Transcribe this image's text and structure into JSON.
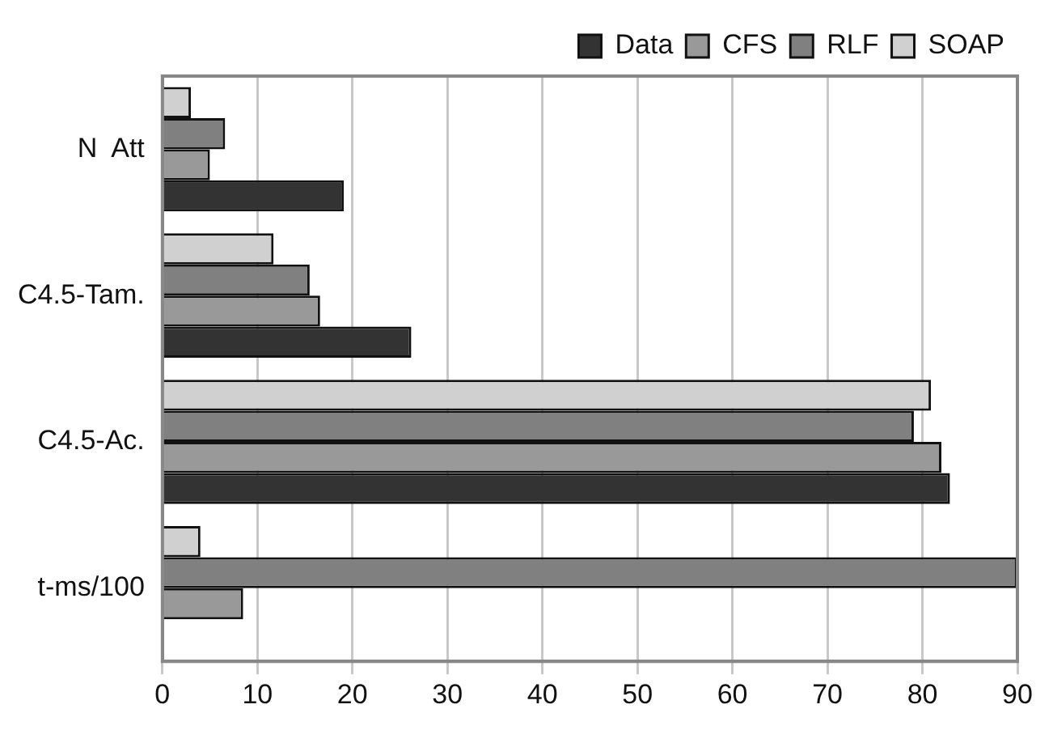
{
  "chart_data": {
    "type": "bar",
    "orientation": "horizontal",
    "categories": [
      "N  Att",
      "C4.5-Tam.",
      "C4.5-Ac.",
      "t-ms/100"
    ],
    "series": [
      {
        "name": "Data",
        "color": "#333333",
        "values": [
          19.1,
          26.2,
          82.9,
          null
        ]
      },
      {
        "name": "CFS",
        "color": "#999999",
        "values": [
          5.0,
          16.6,
          82.0,
          8.5
        ]
      },
      {
        "name": "RLF",
        "color": "#808080",
        "values": [
          6.6,
          15.5,
          79.1,
          90
        ]
      },
      {
        "name": "SOAP",
        "color": "#d0d0d0",
        "values": [
          3.0,
          11.7,
          80.9,
          4.0
        ]
      }
    ],
    "xlim": [
      0,
      90
    ],
    "xticks": [
      0,
      10,
      20,
      30,
      40,
      50,
      60,
      70,
      80,
      90
    ],
    "grid": "x",
    "legend": "top"
  }
}
